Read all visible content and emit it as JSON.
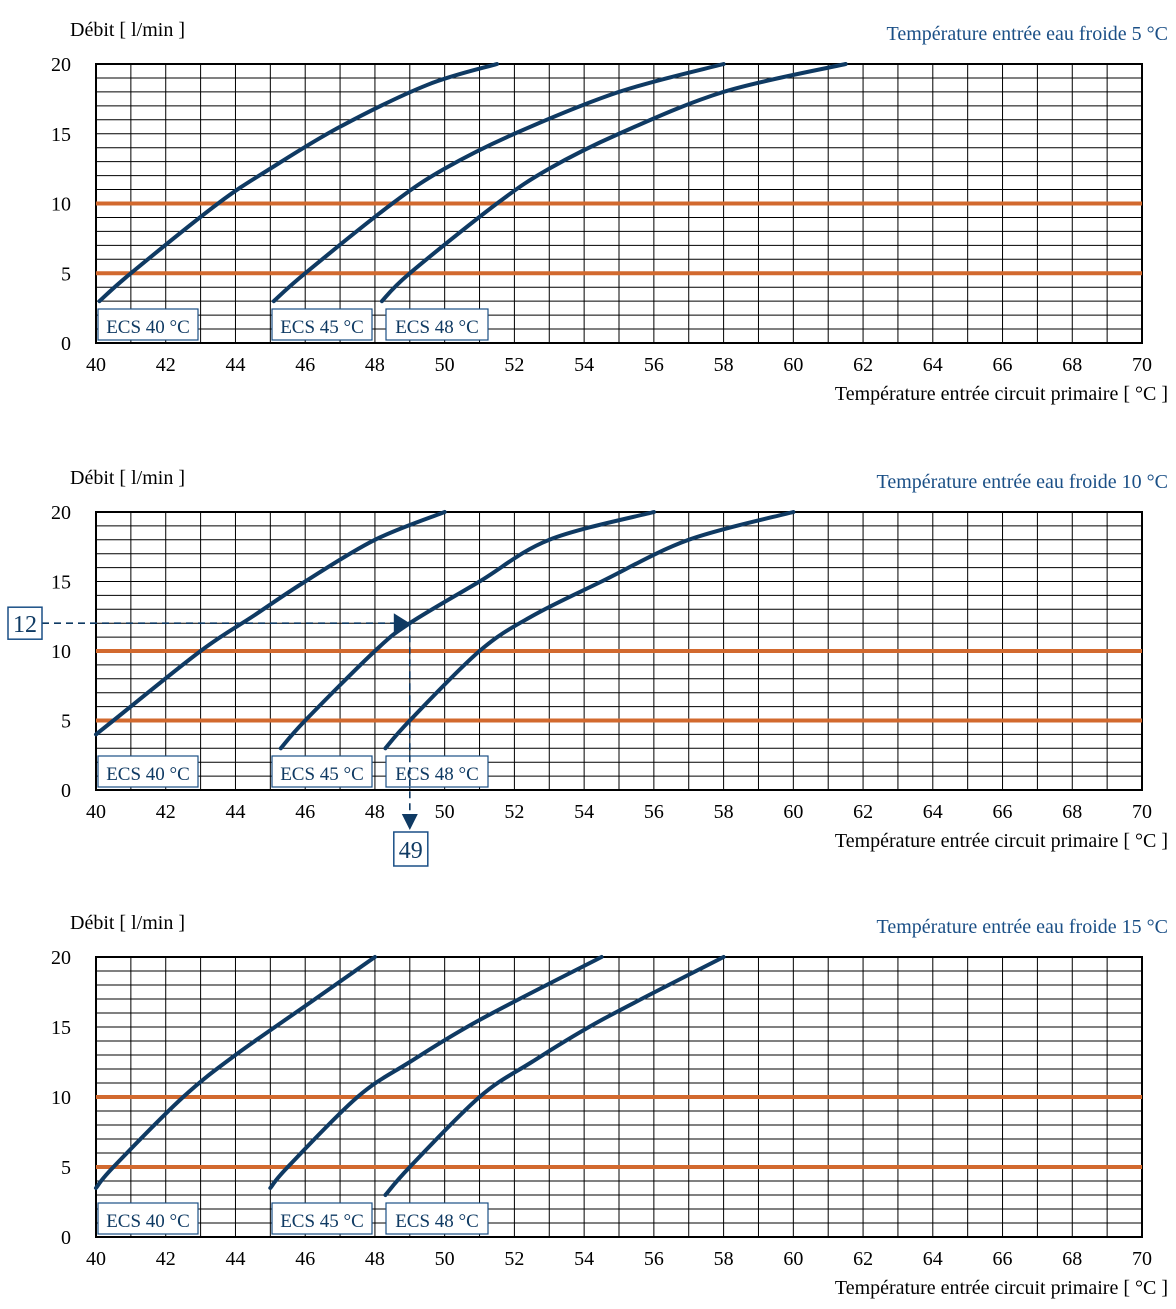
{
  "colors": {
    "curve": "#0f3a63",
    "reference_line": "#d2692e",
    "title": "#1a4f86",
    "grid": "#000000",
    "label_border": "#1a4f86"
  },
  "chart_data": [
    {
      "type": "line",
      "title": "Température entrée eau froide 5 °C",
      "ylabel": "Débit [ l/min ]",
      "xlabel": "Température entrée circuit primaire [ °C ]",
      "xlim": [
        40,
        70
      ],
      "ylim": [
        0,
        20
      ],
      "x_ticks": [
        "40",
        "42",
        "44",
        "46",
        "48",
        "50",
        "52",
        "54",
        "56",
        "58",
        "60",
        "62",
        "64",
        "66",
        "68",
        "70"
      ],
      "y_ticks": [
        "0",
        "5",
        "10",
        "15",
        "20"
      ],
      "grid": true,
      "reference_lines": [
        5,
        10
      ],
      "series": [
        {
          "name": "ECS 40 °C",
          "points": [
            [
              40.1,
              3
            ],
            [
              41,
              5
            ],
            [
              43.5,
              10
            ],
            [
              45,
              12.5
            ],
            [
              47,
              15.5
            ],
            [
              49.5,
              18.5
            ],
            [
              51.5,
              20
            ]
          ]
        },
        {
          "name": "ECS 45 °C",
          "points": [
            [
              45.1,
              3
            ],
            [
              46,
              5
            ],
            [
              48.5,
              10
            ],
            [
              50,
              12.5
            ],
            [
              52,
              15
            ],
            [
              55,
              18
            ],
            [
              58,
              20
            ]
          ]
        },
        {
          "name": "ECS 48 °C",
          "points": [
            [
              48.2,
              3
            ],
            [
              49,
              5
            ],
            [
              51.5,
              10
            ],
            [
              53,
              12.5
            ],
            [
              55,
              15
            ],
            [
              58,
              18
            ],
            [
              61.5,
              20
            ]
          ]
        }
      ],
      "example": null
    },
    {
      "type": "line",
      "title": "Température entrée eau froide 10 °C",
      "ylabel": "Débit [ l/min ]",
      "xlabel": "Température entrée circuit primaire [ °C ]",
      "xlim": [
        40,
        70
      ],
      "ylim": [
        0,
        20
      ],
      "x_ticks": [
        "40",
        "42",
        "44",
        "46",
        "48",
        "50",
        "52",
        "54",
        "56",
        "58",
        "60",
        "62",
        "64",
        "66",
        "68",
        "70"
      ],
      "y_ticks": [
        "0",
        "5",
        "10",
        "15",
        "20"
      ],
      "grid": true,
      "reference_lines": [
        5,
        10
      ],
      "series": [
        {
          "name": "ECS 40 °C",
          "points": [
            [
              40,
              4
            ],
            [
              40.5,
              5
            ],
            [
              43,
              10
            ],
            [
              44.5,
              12.5
            ],
            [
              46,
              15
            ],
            [
              48,
              18
            ],
            [
              50,
              20
            ]
          ]
        },
        {
          "name": "ECS 45 °C",
          "points": [
            [
              45.3,
              3
            ],
            [
              46,
              5
            ],
            [
              48,
              10
            ],
            [
              49,
              12
            ],
            [
              51,
              15
            ],
            [
              53,
              18
            ],
            [
              56,
              20
            ]
          ]
        },
        {
          "name": "ECS 48 °C",
          "points": [
            [
              48.3,
              3
            ],
            [
              49,
              5
            ],
            [
              51,
              10
            ],
            [
              52.5,
              12.5
            ],
            [
              54.5,
              15
            ],
            [
              57,
              18
            ],
            [
              60,
              20
            ]
          ]
        }
      ],
      "example": {
        "y": 12,
        "x": 49,
        "y_label": "12",
        "x_label": "49"
      }
    },
    {
      "type": "line",
      "title": "Température entrée eau froide 15 °C",
      "ylabel": "Débit [ l/min ]",
      "xlabel": "Température entrée circuit primaire [ °C ]",
      "xlim": [
        40,
        70
      ],
      "ylim": [
        0,
        20
      ],
      "x_ticks": [
        "40",
        "42",
        "44",
        "46",
        "48",
        "50",
        "52",
        "54",
        "56",
        "58",
        "60",
        "62",
        "64",
        "66",
        "68",
        "70"
      ],
      "y_ticks": [
        "0",
        "5",
        "10",
        "15",
        "20"
      ],
      "grid": true,
      "reference_lines": [
        5,
        10
      ],
      "series": [
        {
          "name": "ECS 40 °C",
          "points": [
            [
              40,
              3.5
            ],
            [
              40.5,
              5
            ],
            [
              42.5,
              10
            ],
            [
              44,
              13
            ],
            [
              46,
              16.5
            ],
            [
              48,
              20
            ]
          ]
        },
        {
          "name": "ECS 45 °C",
          "points": [
            [
              45,
              3.5
            ],
            [
              45.5,
              5
            ],
            [
              47.5,
              10
            ],
            [
              49,
              12.5
            ],
            [
              51,
              15.5
            ],
            [
              54.5,
              20
            ]
          ]
        },
        {
          "name": "ECS 48 °C",
          "points": [
            [
              48.3,
              3
            ],
            [
              49,
              5
            ],
            [
              51,
              10
            ],
            [
              52.5,
              12.5
            ],
            [
              54.5,
              15.5
            ],
            [
              58,
              20
            ]
          ]
        }
      ],
      "example": null
    }
  ]
}
